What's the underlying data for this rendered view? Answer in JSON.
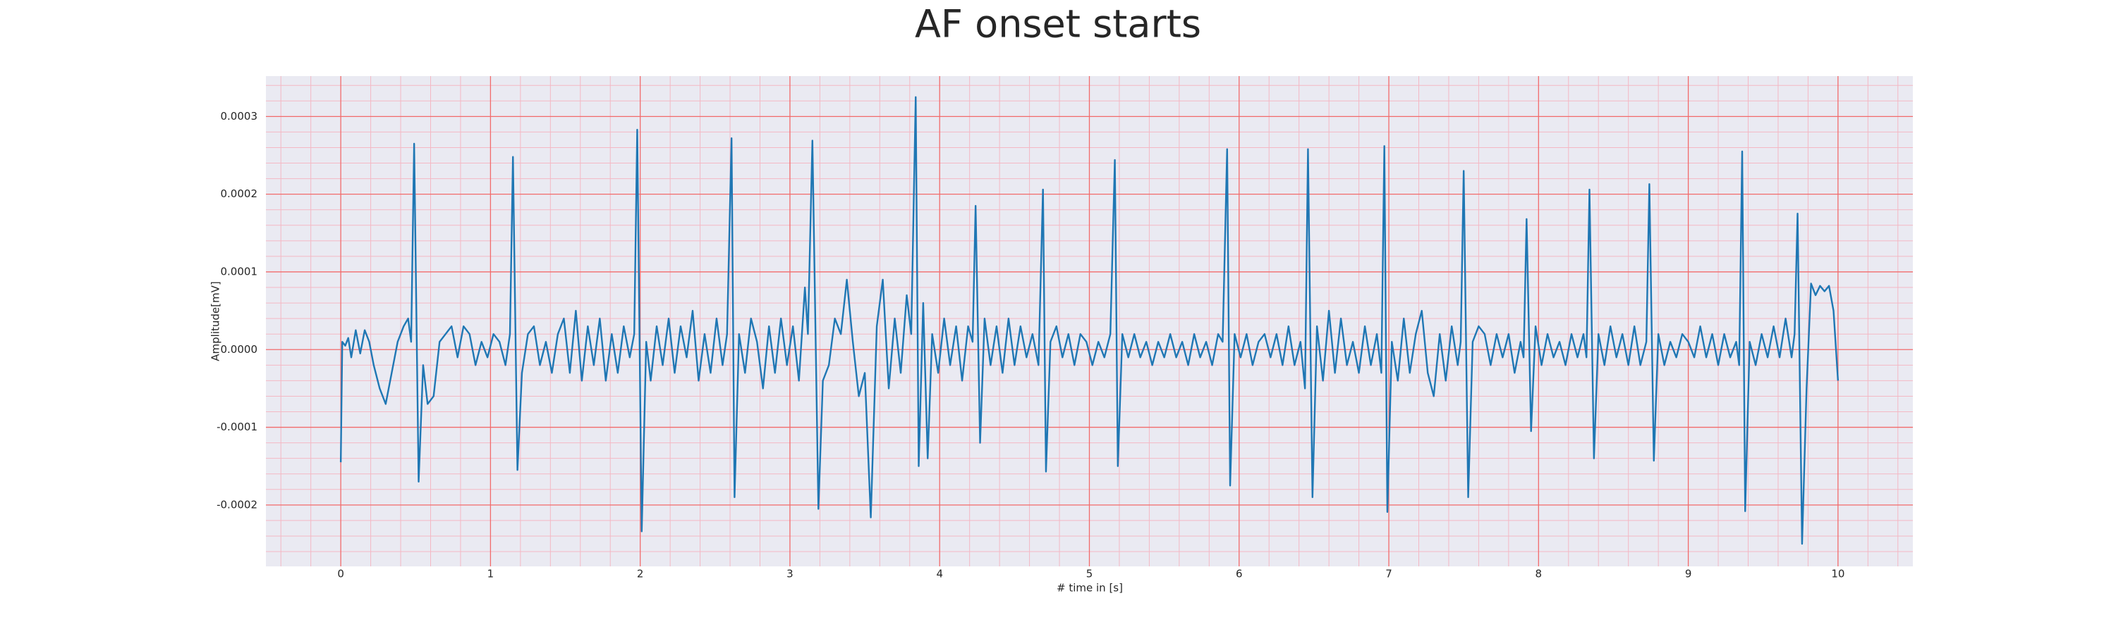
{
  "chart_data": {
    "type": "line",
    "title": "AF onset starts",
    "xlabel": "# time in [s]",
    "ylabel": "Amplitude[mV]",
    "color": "#1f77b4",
    "grid": true,
    "minor_grid": true,
    "xlim": [
      -0.5,
      10.5
    ],
    "xticks": [
      0,
      1,
      2,
      3,
      4,
      5,
      6,
      7,
      8,
      9,
      10
    ],
    "ylim": [
      -0.000279,
      0.000352
    ],
    "yticks": [
      {
        "value": -0.0002,
        "label": "-0.0002"
      },
      {
        "value": -0.0001,
        "label": "-0.0001"
      },
      {
        "value": 0,
        "label": "0.0000"
      },
      {
        "value": 0.0001,
        "label": "0.0001"
      },
      {
        "value": 0.0002,
        "label": "0.0002"
      },
      {
        "value": 0.0003,
        "label": "0.0003"
      }
    ],
    "x": [
      0,
      0.01,
      0.03,
      0.05,
      0.07,
      0.1,
      0.13,
      0.16,
      0.19,
      0.22,
      0.26,
      0.3,
      0.34,
      0.38,
      0.42,
      0.45,
      0.47,
      0.49,
      0.52,
      0.55,
      0.58,
      0.62,
      0.66,
      0.7,
      0.74,
      0.78,
      0.82,
      0.86,
      0.9,
      0.94,
      0.98,
      1.02,
      1.06,
      1.1,
      1.13,
      1.15,
      1.18,
      1.21,
      1.25,
      1.29,
      1.33,
      1.37,
      1.41,
      1.45,
      1.49,
      1.53,
      1.57,
      1.61,
      1.65,
      1.69,
      1.73,
      1.77,
      1.81,
      1.85,
      1.89,
      1.93,
      1.96,
      1.98,
      2.01,
      2.04,
      2.07,
      2.11,
      2.15,
      2.19,
      2.23,
      2.27,
      2.31,
      2.35,
      2.39,
      2.43,
      2.47,
      2.51,
      2.55,
      2.58,
      2.61,
      2.63,
      2.66,
      2.7,
      2.74,
      2.78,
      2.82,
      2.86,
      2.9,
      2.94,
      2.98,
      3.02,
      3.06,
      3.1,
      3.12,
      3.15,
      3.19,
      3.22,
      3.26,
      3.3,
      3.34,
      3.38,
      3.42,
      3.46,
      3.5,
      3.54,
      3.58,
      3.62,
      3.66,
      3.7,
      3.74,
      3.78,
      3.81,
      3.84,
      3.86,
      3.89,
      3.92,
      3.95,
      3.99,
      4.03,
      4.07,
      4.11,
      4.15,
      4.19,
      4.22,
      4.24,
      4.27,
      4.3,
      4.34,
      4.38,
      4.42,
      4.46,
      4.5,
      4.54,
      4.58,
      4.62,
      4.66,
      4.69,
      4.71,
      4.74,
      4.78,
      4.82,
      4.86,
      4.9,
      4.94,
      4.98,
      5.02,
      5.06,
      5.1,
      5.14,
      5.17,
      5.19,
      5.22,
      5.26,
      5.3,
      5.34,
      5.38,
      5.42,
      5.46,
      5.5,
      5.54,
      5.58,
      5.62,
      5.66,
      5.7,
      5.74,
      5.78,
      5.82,
      5.86,
      5.89,
      5.92,
      5.94,
      5.97,
      6.01,
      6.05,
      6.09,
      6.13,
      6.17,
      6.21,
      6.25,
      6.29,
      6.33,
      6.37,
      6.41,
      6.44,
      6.46,
      6.49,
      6.52,
      6.56,
      6.6,
      6.64,
      6.68,
      6.72,
      6.76,
      6.8,
      6.84,
      6.88,
      6.92,
      6.95,
      6.97,
      6.99,
      7.02,
      7.06,
      7.1,
      7.14,
      7.18,
      7.22,
      7.26,
      7.3,
      7.34,
      7.38,
      7.42,
      7.46,
      7.48,
      7.5,
      7.53,
      7.56,
      7.6,
      7.64,
      7.68,
      7.72,
      7.76,
      7.8,
      7.84,
      7.88,
      7.9,
      7.92,
      7.95,
      7.98,
      8.02,
      8.06,
      8.1,
      8.14,
      8.18,
      8.22,
      8.26,
      8.3,
      8.32,
      8.34,
      8.37,
      8.4,
      8.44,
      8.48,
      8.52,
      8.56,
      8.6,
      8.64,
      8.68,
      8.72,
      8.74,
      8.77,
      8.8,
      8.84,
      8.88,
      8.92,
      8.96,
      9.0,
      9.04,
      9.08,
      9.12,
      9.16,
      9.2,
      9.24,
      9.28,
      9.32,
      9.34,
      9.36,
      9.38,
      9.41,
      9.45,
      9.49,
      9.53,
      9.57,
      9.61,
      9.65,
      9.69,
      9.71,
      9.73,
      9.76,
      9.79,
      9.82,
      9.85,
      9.88,
      9.91,
      9.94,
      9.97,
      10.0
    ],
    "values": [
      -0.000145,
      1e-05,
      5e-06,
      1.5e-05,
      -1e-05,
      2.5e-05,
      -5e-06,
      2.5e-05,
      1e-05,
      -2e-05,
      -5e-05,
      -7e-05,
      -3e-05,
      1e-05,
      3e-05,
      4e-05,
      1e-05,
      0.000265,
      -0.00017,
      -2e-05,
      -7e-05,
      -6e-05,
      1e-05,
      2e-05,
      3e-05,
      -1e-05,
      3e-05,
      2e-05,
      -2e-05,
      1e-05,
      -1e-05,
      2e-05,
      1e-05,
      -2e-05,
      2e-05,
      0.000248,
      -0.000155,
      -3e-05,
      2e-05,
      3e-05,
      -2e-05,
      1e-05,
      -3e-05,
      2e-05,
      4e-05,
      -3e-05,
      5e-05,
      -4e-05,
      3e-05,
      -2e-05,
      4e-05,
      -4e-05,
      2e-05,
      -3e-05,
      3e-05,
      -1e-05,
      2e-05,
      0.000283,
      -0.000234,
      1e-05,
      -4e-05,
      3e-05,
      -2e-05,
      4e-05,
      -3e-05,
      3e-05,
      -1e-05,
      5e-05,
      -4e-05,
      2e-05,
      -3e-05,
      4e-05,
      -2e-05,
      2e-05,
      0.000272,
      -0.00019,
      2e-05,
      -3e-05,
      4e-05,
      1e-05,
      -5e-05,
      3e-05,
      -3e-05,
      4e-05,
      -2e-05,
      3e-05,
      -4e-05,
      8e-05,
      2e-05,
      0.000269,
      -0.000205,
      -4e-05,
      -2e-05,
      4e-05,
      2e-05,
      9e-05,
      1e-05,
      -6e-05,
      -3e-05,
      -0.000216,
      3e-05,
      9e-05,
      -5e-05,
      4e-05,
      -3e-05,
      7e-05,
      2e-05,
      0.000325,
      -0.00015,
      6e-05,
      -0.00014,
      2e-05,
      -3e-05,
      4e-05,
      -2e-05,
      3e-05,
      -4e-05,
      3e-05,
      1e-05,
      0.000185,
      -0.00012,
      4e-05,
      -2e-05,
      3e-05,
      -3e-05,
      4e-05,
      -2e-05,
      3e-05,
      -1e-05,
      2e-05,
      -2e-05,
      0.000206,
      -0.000157,
      1e-05,
      3e-05,
      -1e-05,
      2e-05,
      -2e-05,
      2e-05,
      1e-05,
      -2e-05,
      1e-05,
      -1e-05,
      2e-05,
      0.000244,
      -0.00015,
      2e-05,
      -1e-05,
      2e-05,
      -1e-05,
      1e-05,
      -2e-05,
      1e-05,
      -1e-05,
      2e-05,
      -1e-05,
      1e-05,
      -2e-05,
      2e-05,
      -1e-05,
      1e-05,
      -2e-05,
      2e-05,
      1e-05,
      0.000258,
      -0.000175,
      2e-05,
      -1e-05,
      2e-05,
      -2e-05,
      1e-05,
      2e-05,
      -1e-05,
      2e-05,
      -2e-05,
      3e-05,
      -2e-05,
      1e-05,
      -5e-05,
      0.000258,
      -0.00019,
      3e-05,
      -4e-05,
      5e-05,
      -3e-05,
      4e-05,
      -2e-05,
      1e-05,
      -3e-05,
      3e-05,
      -2e-05,
      2e-05,
      -3e-05,
      0.000262,
      -0.000209,
      1e-05,
      -4e-05,
      4e-05,
      -3e-05,
      2e-05,
      5e-05,
      -3e-05,
      -6e-05,
      2e-05,
      -4e-05,
      3e-05,
      -2e-05,
      1e-05,
      0.00023,
      -0.00019,
      1e-05,
      3e-05,
      2e-05,
      -2e-05,
      2e-05,
      -1e-05,
      2e-05,
      -3e-05,
      1e-05,
      -1e-05,
      0.000168,
      -0.000105,
      3e-05,
      -2e-05,
      2e-05,
      -1e-05,
      1e-05,
      -2e-05,
      2e-05,
      -1e-05,
      2e-05,
      -1e-05,
      0.000206,
      -0.00014,
      2e-05,
      -2e-05,
      3e-05,
      -1e-05,
      2e-05,
      -2e-05,
      3e-05,
      -2e-05,
      1e-05,
      0.000213,
      -0.000143,
      2e-05,
      -2e-05,
      1e-05,
      -1e-05,
      2e-05,
      1e-05,
      -1e-05,
      3e-05,
      -1e-05,
      2e-05,
      -2e-05,
      2e-05,
      -1e-05,
      1e-05,
      -2e-05,
      0.000255,
      -0.000208,
      1e-05,
      -2e-05,
      2e-05,
      -1e-05,
      3e-05,
      -1e-05,
      4e-05,
      -1e-05,
      2e-05,
      0.000175,
      -0.00025,
      -5e-05,
      8.5e-05,
      7e-05,
      8.2e-05,
      7.5e-05,
      8.2e-05,
      5e-05,
      -4e-05
    ]
  }
}
